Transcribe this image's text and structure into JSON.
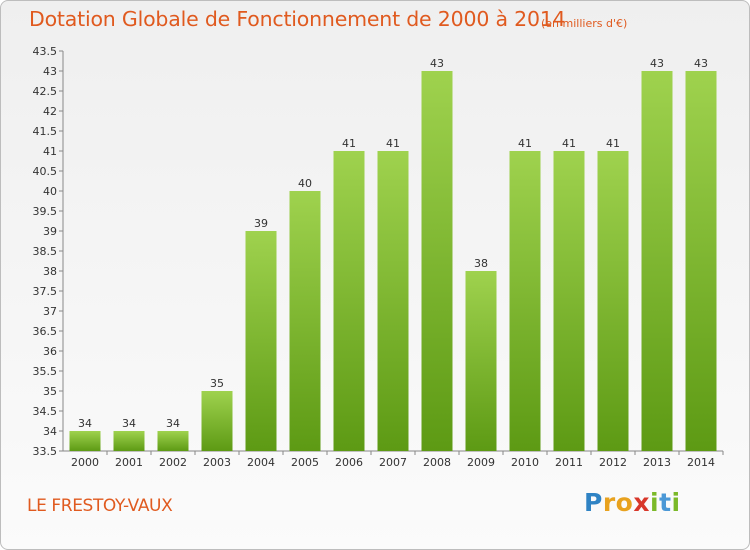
{
  "header": {
    "title": "Dotation Globale de Fonctionnement de 2000 à 2014",
    "unit": "(en milliers d'€)"
  },
  "footer": {
    "commune": "LE FRESTOY-VAUX",
    "logo": {
      "letters": [
        "P",
        "r",
        "o",
        "x",
        "i",
        "t",
        "i"
      ],
      "colors": [
        "#2f83c4",
        "#e8a21f",
        "#e8a21f",
        "#d8372a",
        "#7bb928",
        "#4b98d6",
        "#7bb928"
      ]
    }
  },
  "chart_data": {
    "type": "bar",
    "title": "Dotation Globale de Fonctionnement de 2000 à 2014",
    "subtitle": "(en milliers d'€)",
    "xlabel": "",
    "ylabel": "",
    "categories": [
      "2000",
      "2001",
      "2002",
      "2003",
      "2004",
      "2005",
      "2006",
      "2007",
      "2008",
      "2009",
      "2010",
      "2011",
      "2012",
      "2013",
      "2014"
    ],
    "values": [
      34,
      34,
      34,
      35,
      39,
      40,
      41,
      41,
      43,
      38,
      41,
      41,
      41,
      43,
      43
    ],
    "ylim": [
      33.5,
      43.5
    ],
    "yticks": [
      "33.5",
      "34",
      "34.5",
      "35",
      "35.5",
      "36",
      "36.5",
      "37",
      "37.5",
      "38",
      "38.5",
      "39",
      "39.5",
      "40",
      "40.5",
      "41",
      "41.5",
      "42",
      "42.5",
      "43",
      "43.5"
    ],
    "grid": false,
    "legend": "none",
    "colors": {
      "bar_top": "#9fd24e",
      "bar_bottom": "#5d9a14",
      "axis": "#888888"
    }
  }
}
